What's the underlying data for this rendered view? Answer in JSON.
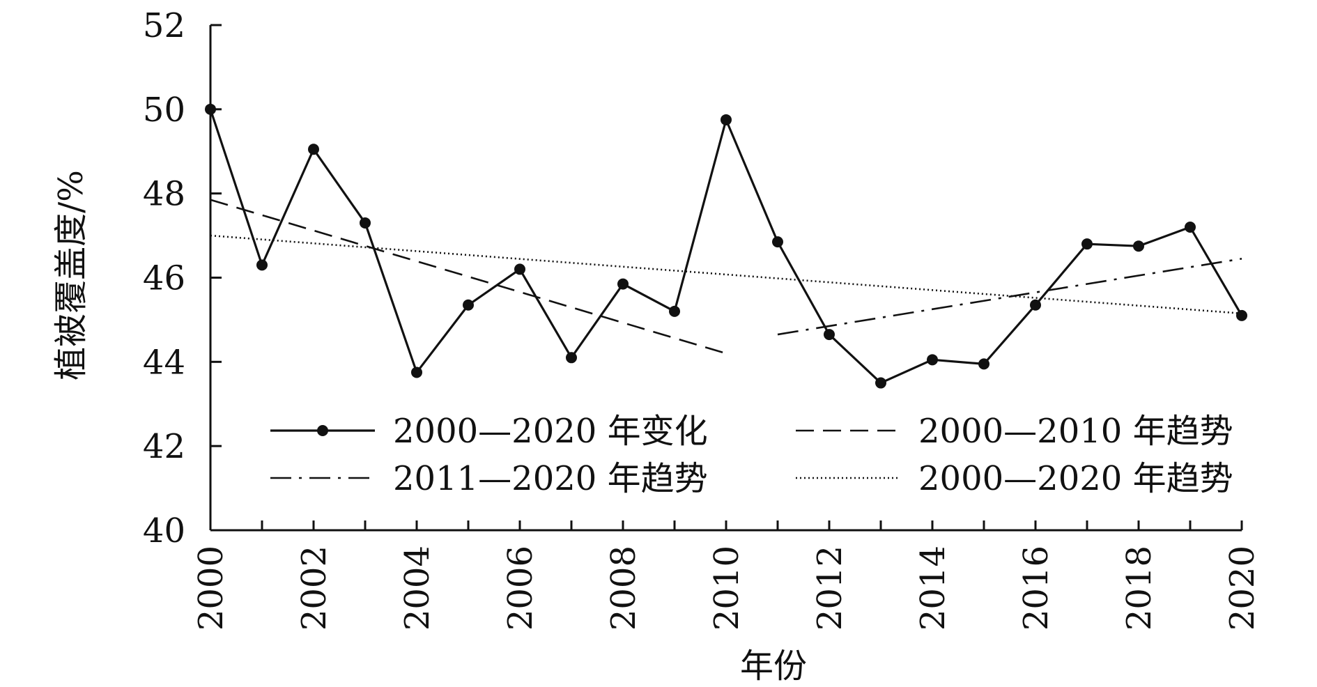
{
  "chart_data": {
    "type": "line",
    "title": "",
    "xlabel": "年份",
    "ylabel": "植被覆盖度/%",
    "xlim": [
      2000,
      2020
    ],
    "ylim": [
      40,
      52
    ],
    "x_ticks": [
      2000,
      2002,
      2004,
      2006,
      2008,
      2010,
      2012,
      2014,
      2016,
      2018,
      2020
    ],
    "y_ticks": [
      40,
      42,
      44,
      46,
      48,
      50,
      52
    ],
    "grid": false,
    "legend_position": "bottom",
    "series": [
      {
        "name": "2000—2020 年变化",
        "style": "solid-markers",
        "x": [
          2000,
          2001,
          2002,
          2003,
          2004,
          2005,
          2006,
          2007,
          2008,
          2009,
          2010,
          2011,
          2012,
          2013,
          2014,
          2015,
          2016,
          2017,
          2018,
          2019,
          2020
        ],
        "y": [
          50.0,
          46.3,
          49.05,
          47.3,
          43.75,
          45.35,
          46.2,
          44.1,
          45.85,
          45.2,
          49.75,
          46.85,
          44.65,
          43.5,
          44.05,
          43.95,
          45.35,
          46.8,
          46.75,
          47.2,
          45.1
        ]
      },
      {
        "name": "2000—2010 年趋势",
        "style": "dashed",
        "x": [
          2000,
          2010
        ],
        "y": [
          47.85,
          44.2
        ]
      },
      {
        "name": "2011—2020 年趋势",
        "style": "dash-dot",
        "x": [
          2011,
          2020
        ],
        "y": [
          44.65,
          46.45
        ]
      },
      {
        "name": "2000—2020 年趋势",
        "style": "dotted",
        "x": [
          2000,
          2020
        ],
        "y": [
          47.0,
          45.15
        ]
      }
    ]
  }
}
